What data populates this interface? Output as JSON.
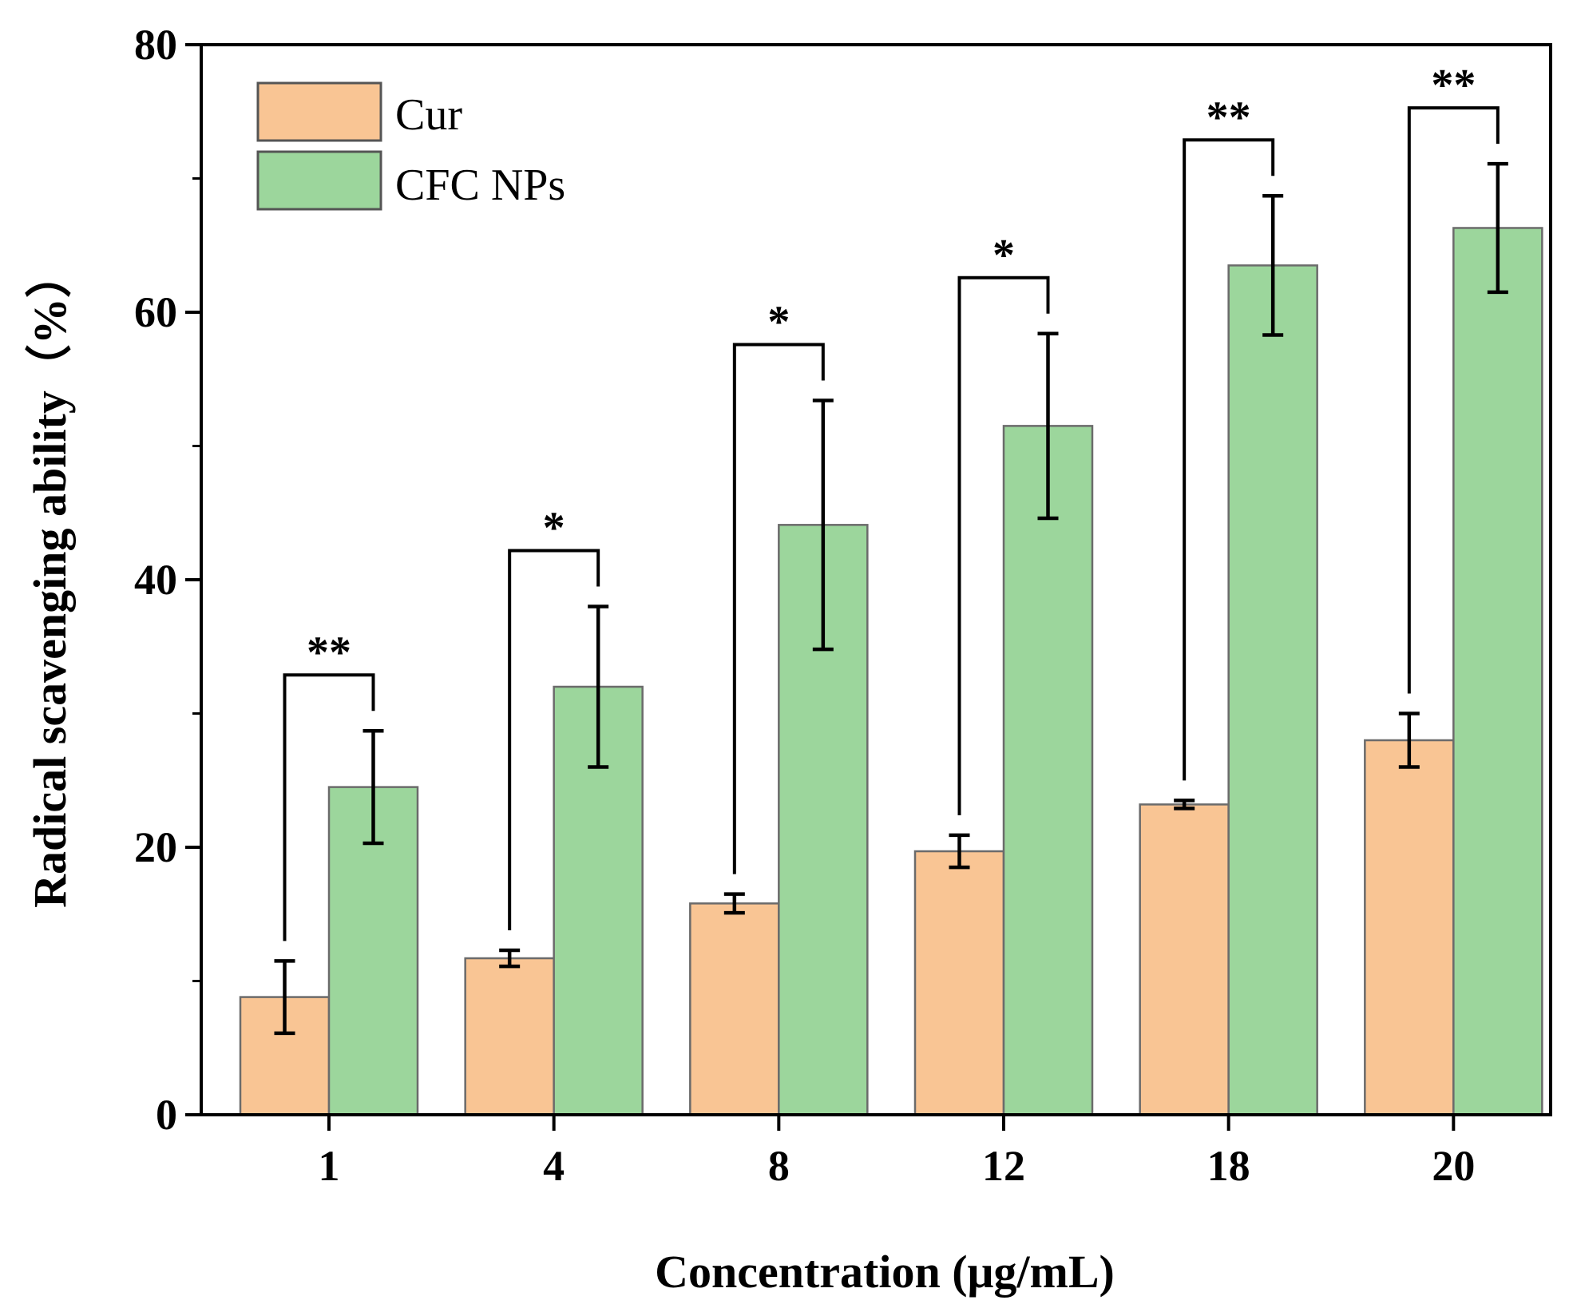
{
  "chart_data": {
    "type": "bar",
    "title": "",
    "xlabel": "Concentration (μg/mL)",
    "ylabel": "Radical scavenging ability（%）",
    "ylim": [
      0,
      80
    ],
    "yticks": [
      0,
      20,
      40,
      60,
      80
    ],
    "categories": [
      "1",
      "4",
      "8",
      "12",
      "18",
      "20"
    ],
    "series": [
      {
        "name": "Cur",
        "color": "#F9C594",
        "values": [
          8.8,
          11.7,
          15.8,
          19.7,
          23.2,
          28.0
        ],
        "errors": [
          2.7,
          0.6,
          0.7,
          1.2,
          0.3,
          2.0
        ]
      },
      {
        "name": "CFC NPs",
        "color": "#9CD69C",
        "values": [
          24.5,
          32.0,
          44.1,
          51.5,
          63.5,
          66.3
        ],
        "errors": [
          4.2,
          6.0,
          9.3,
          6.9,
          5.2,
          4.8
        ]
      }
    ],
    "significance": [
      "**",
      "*",
      "*",
      "*",
      "**",
      "**"
    ],
    "legend_position": "top-left",
    "grid": false
  }
}
